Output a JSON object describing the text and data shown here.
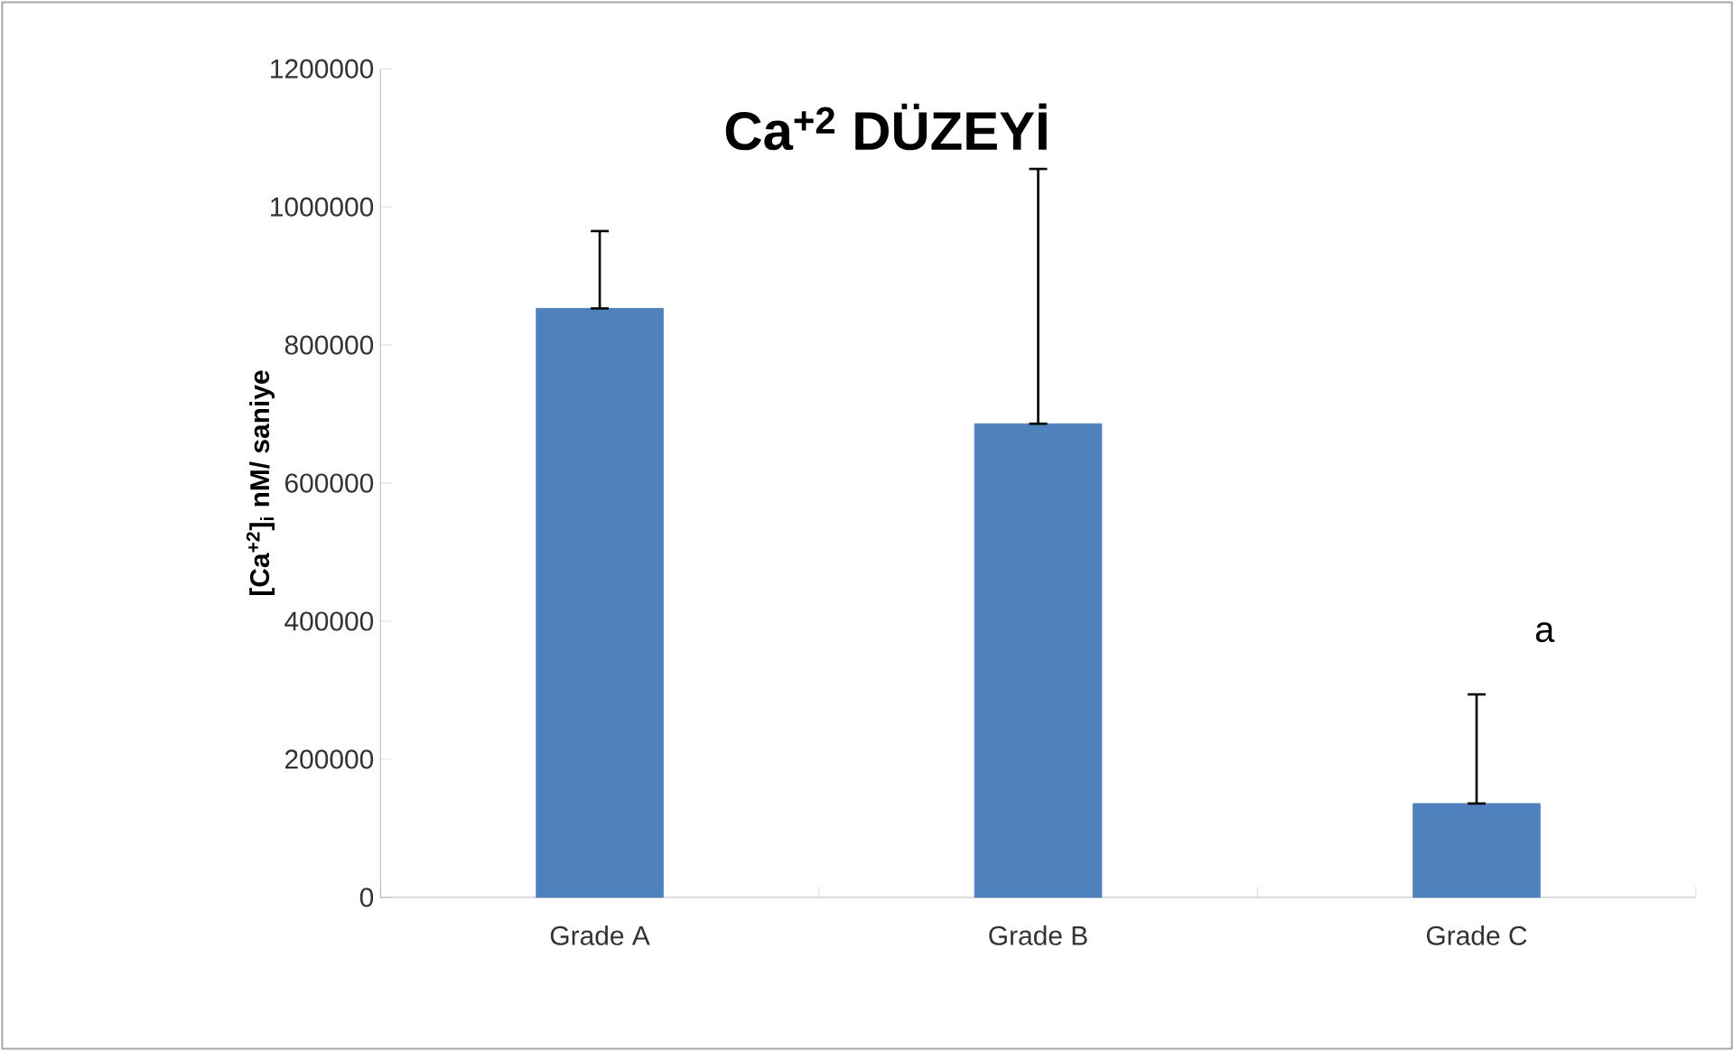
{
  "chart_data": {
    "type": "bar",
    "title": "Ca$^{+2}$ DÜZEYİ",
    "ylabel": "[Ca$^{+2}$]$_{i}$ nM/ saniye",
    "categories": [
      "Grade A",
      "Grade B",
      "Grade C"
    ],
    "values": [
      853000,
      686000,
      136000
    ],
    "errors": [
      [
        853000,
        965000
      ],
      [
        686000,
        1055000
      ],
      [
        136000,
        294000
      ]
    ],
    "color": "#4f81bd",
    "ylim": [
      0,
      1200000
    ],
    "yticks": [
      0,
      200000,
      400000,
      600000,
      800000,
      1000000,
      1200000
    ],
    "annotations": [
      "a"
    ]
  }
}
